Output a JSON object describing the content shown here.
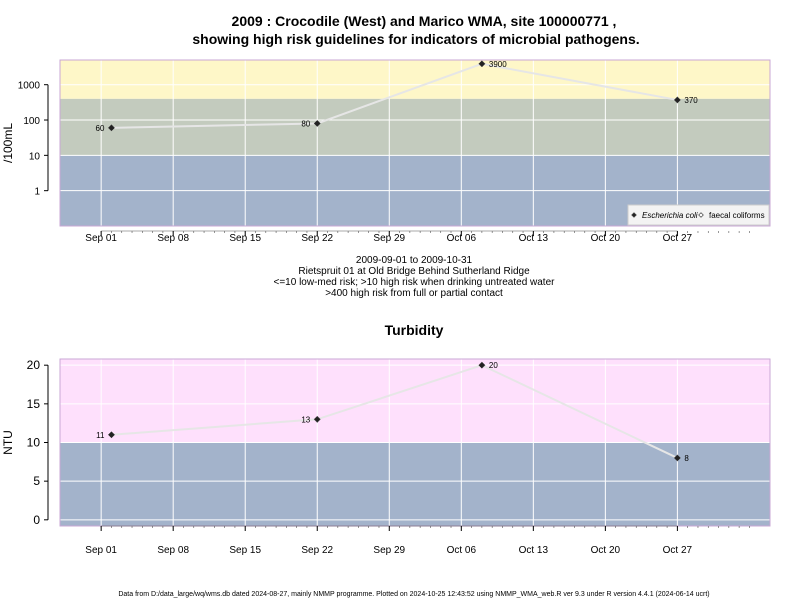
{
  "page": {
    "title_line1": "2009 : Crocodile (West) and Marico WMA, site 100000771 ,",
    "title_line2": "showing high risk guidelines for indicators of microbial pathogens.",
    "caption_lines": [
      "2009-09-01 to 2009-10-31",
      "Rietspruit 01 at Old Bridge Behind Sutherland Ridge",
      "<=10 low-med risk; >10 high risk when drinking untreated water",
      ">400 high risk from full or partial contact"
    ],
    "footer": "Data from D:/data_large/wq/wms.db dated 2024-08-27, mainly NMMP programme. Plotted on 2024-10-25 12:43:52 using NMMP_WMA_web.R ver 9.3 under R version 4.4.1 (2024-06-14 ucrt)"
  },
  "colors": {
    "band_low": "#a3b3cb",
    "band_mid": "#c3cbbe",
    "band_high": "#fef7c8",
    "band_turb_high": "#fee0fc",
    "frame": "#c9a7d6",
    "grid": "#ffffff",
    "line": "#e6e6e6",
    "point": "#222222"
  },
  "chart_data": [
    {
      "type": "line",
      "title": "",
      "ylabel": "/100mL",
      "xlabel": "",
      "x_axis": "date",
      "xlim": [
        "2009-08-28",
        "2009-11-05"
      ],
      "x_ticks": [
        "2009-09-01",
        "2009-09-08",
        "2009-09-15",
        "2009-09-22",
        "2009-09-29",
        "2009-10-06",
        "2009-10-13",
        "2009-10-20",
        "2009-10-27"
      ],
      "x_tick_labels": [
        "Sep 01",
        "Sep 08",
        "Sep 15",
        "Sep 22",
        "Sep 29",
        "Oct 06",
        "Oct 13",
        "Oct 20",
        "Oct 27"
      ],
      "y_scale": "log",
      "ylim": [
        0.1,
        5000
      ],
      "y_ticks": [
        1,
        10,
        100,
        1000
      ],
      "y_tick_labels": [
        "1",
        "10",
        "100",
        "1000"
      ],
      "bands": [
        {
          "from": 0.1,
          "to": 10,
          "color": "band_low"
        },
        {
          "from": 10,
          "to": 400,
          "color": "band_mid"
        },
        {
          "from": 400,
          "to": 5000,
          "color": "band_high"
        }
      ],
      "grid": true,
      "legend": {
        "position": "bottom-right",
        "entries": [
          {
            "label": "Escherichia coli",
            "marker": "filled-diamond",
            "italic": true
          },
          {
            "label": "faecal coliforms",
            "marker": "open-diamond",
            "italic": false
          }
        ]
      },
      "series": [
        {
          "name": "Escherichia coli",
          "x": [
            "2009-09-02",
            "2009-09-22",
            "2009-10-08",
            "2009-10-27"
          ],
          "values": [
            60,
            80,
            3900,
            370
          ],
          "labels": [
            "60",
            "80",
            "3900",
            "370"
          ],
          "label_sides": [
            "left",
            "left",
            "right",
            "right"
          ]
        }
      ]
    },
    {
      "type": "line",
      "title": "Turbidity",
      "ylabel": "NTU",
      "xlabel": "",
      "x_axis": "date",
      "xlim": [
        "2009-08-28",
        "2009-11-05"
      ],
      "x_ticks": [
        "2009-09-01",
        "2009-09-08",
        "2009-09-15",
        "2009-09-22",
        "2009-09-29",
        "2009-10-06",
        "2009-10-13",
        "2009-10-20",
        "2009-10-27"
      ],
      "x_tick_labels": [
        "Sep 01",
        "Sep 08",
        "Sep 15",
        "Sep 22",
        "Sep 29",
        "Oct 06",
        "Oct 13",
        "Oct 20",
        "Oct 27"
      ],
      "y_scale": "linear",
      "ylim": [
        -0.8,
        20.8
      ],
      "y_ticks": [
        0,
        5,
        10,
        15,
        20
      ],
      "y_tick_labels": [
        "0",
        "5",
        "10",
        "15",
        "20"
      ],
      "bands": [
        {
          "from": -0.8,
          "to": 10,
          "color": "band_low"
        },
        {
          "from": 10,
          "to": 20.8,
          "color": "band_turb_high"
        }
      ],
      "grid": true,
      "series": [
        {
          "name": "",
          "x": [
            "2009-09-02",
            "2009-09-22",
            "2009-10-08",
            "2009-10-27"
          ],
          "values": [
            11,
            13,
            20,
            8
          ],
          "labels": [
            "11",
            "13",
            "20",
            "8"
          ],
          "label_sides": [
            "left",
            "left",
            "right",
            "right"
          ]
        }
      ]
    }
  ]
}
